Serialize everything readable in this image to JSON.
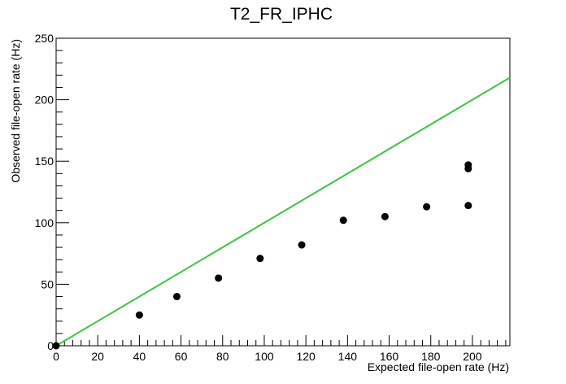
{
  "chart_data": {
    "type": "scatter",
    "title": "T2_FR_IPHC",
    "xlabel": "Expected file-open rate (Hz)",
    "ylabel": "Observed file-open rate (Hz)",
    "xlim": [
      0,
      218
    ],
    "ylim": [
      0,
      250
    ],
    "x_ticks": [
      "0",
      "20",
      "40",
      "60",
      "80",
      "100",
      "120",
      "140",
      "160",
      "180",
      "200"
    ],
    "y_ticks": [
      "0",
      "50",
      "100",
      "150",
      "200",
      "250"
    ],
    "grid": false,
    "legend": "none",
    "series": [
      {
        "type": "scatter",
        "color": "#000000",
        "marker": "circle",
        "points": [
          {
            "x": 0,
            "y": 0
          },
          {
            "x": 40,
            "y": 25
          },
          {
            "x": 58,
            "y": 40
          },
          {
            "x": 78,
            "y": 55
          },
          {
            "x": 98,
            "y": 71
          },
          {
            "x": 118,
            "y": 82
          },
          {
            "x": 138,
            "y": 102
          },
          {
            "x": 158,
            "y": 105
          },
          {
            "x": 178,
            "y": 113
          },
          {
            "x": 198,
            "y": 114
          },
          {
            "x": 198,
            "y": 144
          },
          {
            "x": 198,
            "y": 147
          }
        ]
      },
      {
        "type": "line",
        "color": "#3cc83c",
        "points": [
          {
            "x": 0,
            "y": 0
          },
          {
            "x": 218,
            "y": 218
          }
        ]
      }
    ]
  }
}
